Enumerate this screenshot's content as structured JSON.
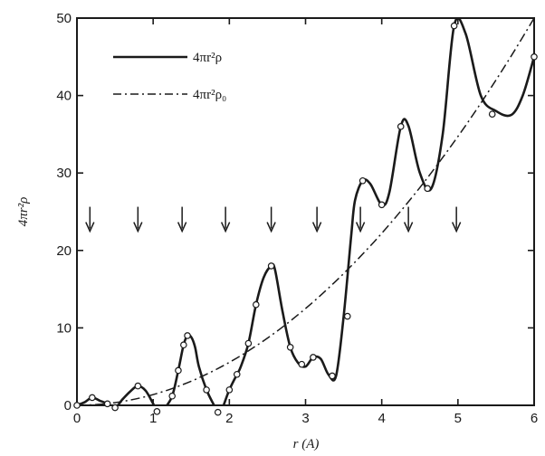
{
  "chart_data": {
    "type": "line",
    "xlabel": "r (A)",
    "ylabel": "4πr²ρ",
    "xlim": [
      0,
      6
    ],
    "ylim": [
      0,
      50
    ],
    "x_ticks": [
      0,
      1,
      2,
      3,
      4,
      5,
      6
    ],
    "y_ticks": [
      0,
      10,
      20,
      30,
      40,
      50
    ],
    "grid": false,
    "legend_position": "top-left",
    "series": [
      {
        "name": "4πr²ρ",
        "style": "solid",
        "color": "#1a1a1a",
        "x": [
          0.0,
          0.1,
          0.2,
          0.3,
          0.4,
          0.5,
          0.6,
          0.7,
          0.8,
          0.9,
          1.0,
          1.05,
          1.1,
          1.15,
          1.25,
          1.33,
          1.4,
          1.45,
          1.5,
          1.55,
          1.6,
          1.7,
          1.8,
          1.85,
          1.9,
          2.0,
          2.1,
          2.15,
          2.25,
          2.35,
          2.45,
          2.55,
          2.6,
          2.7,
          2.8,
          2.9,
          3.0,
          3.1,
          3.2,
          3.3,
          3.4,
          3.5,
          3.6,
          3.65,
          3.75,
          3.85,
          4.0,
          4.1,
          4.25,
          4.35,
          4.5,
          4.65,
          4.8,
          4.95,
          5.1,
          5.3,
          5.5,
          5.7,
          5.85,
          6.0
        ],
        "y": [
          0,
          0.4,
          1.0,
          0.6,
          0.2,
          -0.3,
          0.8,
          1.8,
          2.5,
          1.9,
          0.2,
          -0.8,
          -0.9,
          -0.4,
          1.2,
          4.5,
          7.8,
          9.0,
          8.8,
          7.5,
          5.0,
          2.0,
          0.0,
          -0.9,
          -0.6,
          2.0,
          4.0,
          5.0,
          8.0,
          13.0,
          16.5,
          18.0,
          17.5,
          12.0,
          7.5,
          5.5,
          5.0,
          6.2,
          6.0,
          4.0,
          3.8,
          11.5,
          22.0,
          26.5,
          29.0,
          28.6,
          25.9,
          27.5,
          36.0,
          36.1,
          30.0,
          28.0,
          35.0,
          49.0,
          48.0,
          40.0,
          38.0,
          37.5,
          40.0,
          45.0
        ],
        "markers": [
          [
            0.0,
            0
          ],
          [
            0.2,
            1.0
          ],
          [
            0.4,
            0.2
          ],
          [
            0.5,
            -0.3
          ],
          [
            0.8,
            2.5
          ],
          [
            1.05,
            -0.8
          ],
          [
            1.25,
            1.2
          ],
          [
            1.33,
            4.5
          ],
          [
            1.4,
            7.8
          ],
          [
            1.45,
            9.0
          ],
          [
            1.7,
            2.0
          ],
          [
            1.85,
            -0.9
          ],
          [
            2.0,
            2.0
          ],
          [
            2.1,
            4.0
          ],
          [
            2.25,
            8.0
          ],
          [
            2.35,
            13.0
          ],
          [
            2.55,
            18.0
          ],
          [
            2.8,
            7.5
          ],
          [
            2.95,
            5.3
          ],
          [
            3.1,
            6.2
          ],
          [
            3.35,
            3.8
          ],
          [
            3.55,
            11.5
          ],
          [
            3.75,
            29.0
          ],
          [
            4.0,
            25.9
          ],
          [
            4.25,
            36.0
          ],
          [
            4.6,
            28.0
          ],
          [
            4.95,
            49.0
          ],
          [
            5.45,
            37.6
          ],
          [
            6.0,
            45.0
          ]
        ]
      },
      {
        "name": "4πr²ρ₀",
        "style": "dash-dot",
        "color": "#1a1a1a",
        "x": [
          0.0,
          0.3,
          0.6,
          0.9,
          1.2,
          1.5,
          1.8,
          2.1,
          2.4,
          2.7,
          3.0,
          3.3,
          3.6,
          3.9,
          4.2,
          4.5,
          4.8,
          5.1,
          5.4,
          5.7,
          6.0
        ],
        "y": [
          0.0,
          0.125,
          0.5,
          1.125,
          2.0,
          3.125,
          4.5,
          6.125,
          8.0,
          10.125,
          12.5,
          15.125,
          18.0,
          21.125,
          24.5,
          28.125,
          32.0,
          36.125,
          40.5,
          45.125,
          50.0
        ]
      }
    ],
    "annotations": {
      "arrows_y": 24,
      "arrows_x": [
        0.17,
        0.8,
        1.38,
        1.95,
        2.55,
        3.15,
        3.72,
        4.35,
        4.98
      ]
    }
  }
}
